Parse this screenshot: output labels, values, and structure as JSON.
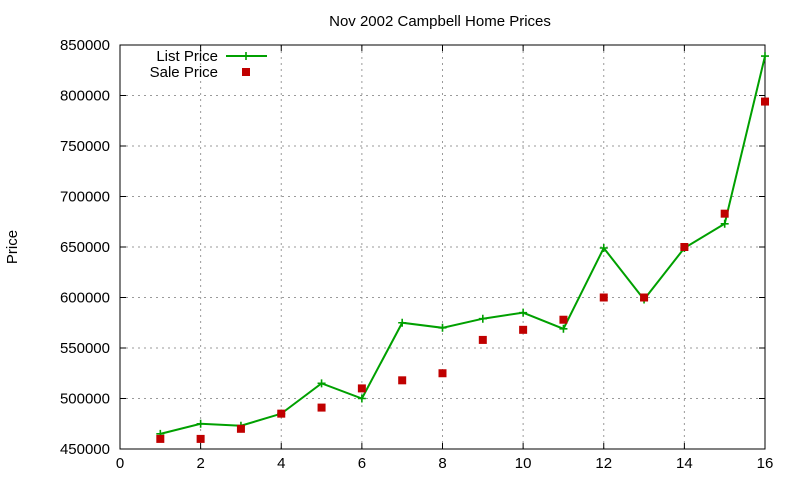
{
  "chart_data": {
    "type": "line",
    "title": "Nov 2002 Campbell Home Prices",
    "xlabel": "",
    "ylabel": "Price",
    "xlim": [
      0,
      16
    ],
    "ylim": [
      450000,
      850000
    ],
    "xticks": [
      0,
      2,
      4,
      6,
      8,
      10,
      12,
      14,
      16
    ],
    "yticks": [
      450000,
      500000,
      550000,
      600000,
      650000,
      700000,
      750000,
      800000,
      850000
    ],
    "grid": true,
    "legend_position": "top-left",
    "series": [
      {
        "name": "List Price",
        "style": "linespoints",
        "marker": "plus",
        "color": "#00a000",
        "x": [
          1,
          2,
          3,
          4,
          5,
          6,
          7,
          8,
          9,
          10,
          11,
          12,
          13,
          14,
          15,
          16
        ],
        "y": [
          465000,
          475000,
          473000,
          485000,
          515000,
          500000,
          575000,
          570000,
          579000,
          585000,
          569000,
          649000,
          598000,
          649000,
          673000,
          839000
        ]
      },
      {
        "name": "Sale Price",
        "style": "points",
        "marker": "square",
        "color": "#c00000",
        "x": [
          1,
          2,
          3,
          4,
          5,
          6,
          7,
          8,
          9,
          10,
          11,
          12,
          13,
          14,
          15,
          16
        ],
        "y": [
          460000,
          460000,
          470000,
          485000,
          491000,
          510000,
          518000,
          525000,
          558000,
          568000,
          578000,
          600000,
          600000,
          650000,
          683000,
          794000
        ]
      }
    ]
  }
}
